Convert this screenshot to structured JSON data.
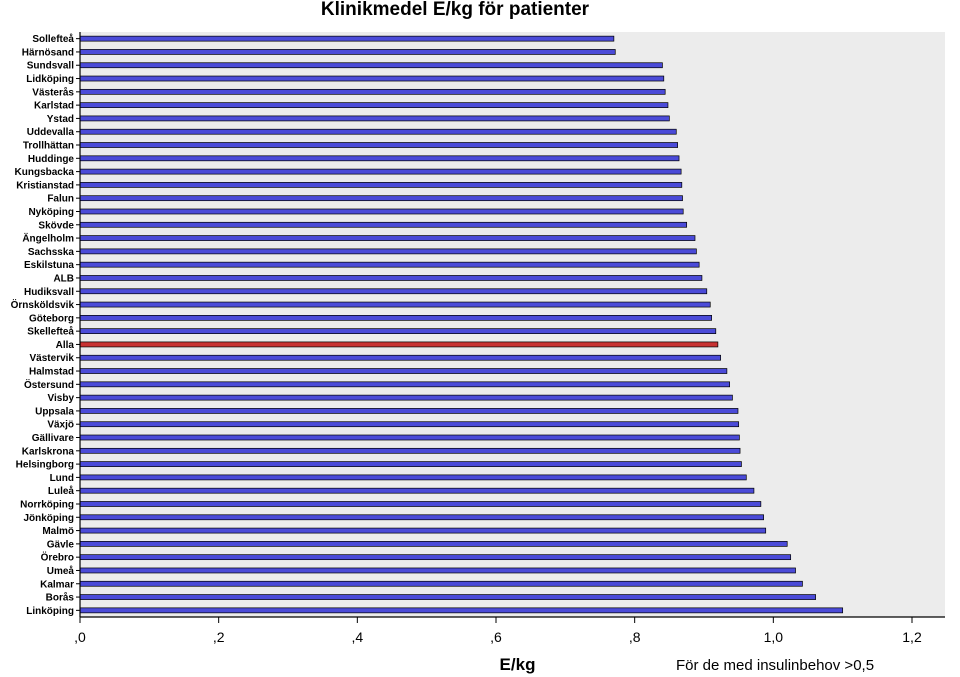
{
  "chart_data": {
    "type": "bar",
    "orientation": "horizontal",
    "title": "Klinikmedel E/kg för patienter",
    "xlabel": "E/kg",
    "ylabel": "",
    "footnote": "För de med insulinbehov >0,5",
    "xlim": [
      0,
      1.25
    ],
    "xticks": [
      0,
      0.2,
      0.4,
      0.6,
      0.8,
      1.0,
      1.2
    ],
    "xtick_labels": [
      ",0",
      ",2",
      ",4",
      ",6",
      ",8",
      "1,0",
      "1,2"
    ],
    "grid": false,
    "bar_color": "#4b4bd8",
    "highlight_color": "#c83232",
    "highlight_category": "Alla",
    "plot_background": "#ececec",
    "categories": [
      "Sollefteå",
      "Härnösand",
      "Sundsvall",
      "Lidköping",
      "Västerås",
      "Karlstad",
      "Ystad",
      "Uddevalla",
      "Trollhättan",
      "Huddinge",
      "Kungsbacka",
      "Kristianstad",
      "Falun",
      "Nyköping",
      "Skövde",
      "Ängelholm",
      "Sachsska",
      "Eskilstuna",
      "ALB",
      "Hudiksvall",
      "Örnsköldsvik",
      "Göteborg",
      "Skellefteå",
      "Alla",
      "Västervik",
      "Halmstad",
      "Östersund",
      "Visby",
      "Uppsala",
      "Växjö",
      "Gällivare",
      "Karlskrona",
      "Helsingborg",
      "Lund",
      "Luleå",
      "Norrköping",
      "Jönköping",
      "Malmö",
      "Gävle",
      "Örebro",
      "Umeå",
      "Kalmar",
      "Borås",
      "Linköping"
    ],
    "values": [
      0.77,
      0.772,
      0.84,
      0.842,
      0.844,
      0.848,
      0.85,
      0.86,
      0.862,
      0.864,
      0.867,
      0.868,
      0.869,
      0.87,
      0.875,
      0.887,
      0.889,
      0.893,
      0.897,
      0.904,
      0.909,
      0.911,
      0.917,
      0.92,
      0.924,
      0.933,
      0.937,
      0.941,
      0.949,
      0.95,
      0.951,
      0.952,
      0.954,
      0.961,
      0.972,
      0.982,
      0.986,
      0.989,
      1.02,
      1.025,
      1.032,
      1.042,
      1.061,
      1.1
    ]
  }
}
